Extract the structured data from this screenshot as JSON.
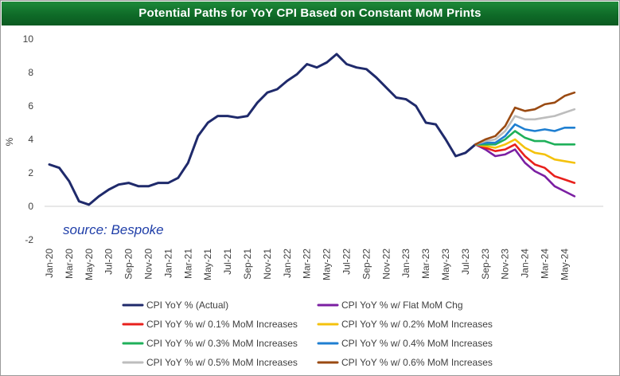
{
  "header": {
    "title": "Potential Paths for YoY CPI Based on Constant MoM Prints"
  },
  "source_label": "source: Bespoke",
  "chart_data": {
    "type": "line",
    "title": "Potential Paths for YoY CPI Based on Constant MoM Prints",
    "ylabel": "%",
    "xlabel": "",
    "ylim": [
      -2,
      10
    ],
    "y_ticks": [
      -2,
      0,
      2,
      4,
      6,
      8,
      10
    ],
    "grid": false,
    "legend_position": "bottom",
    "x_tick_labels": [
      "Jan-20",
      "Mar-20",
      "May-20",
      "Jul-20",
      "Sep-20",
      "Nov-20",
      "Jan-21",
      "Mar-21",
      "May-21",
      "Jul-21",
      "Sep-21",
      "Nov-21",
      "Jan-22",
      "Mar-22",
      "May-22",
      "Jul-22",
      "Sep-22",
      "Nov-22",
      "Jan-23",
      "Mar-23",
      "May-23",
      "Jul-23",
      "Sep-23",
      "Nov-23",
      "Jan-24",
      "Mar-24",
      "May-24"
    ],
    "months": [
      "Jan-20",
      "Feb-20",
      "Mar-20",
      "Apr-20",
      "May-20",
      "Jun-20",
      "Jul-20",
      "Aug-20",
      "Sep-20",
      "Oct-20",
      "Nov-20",
      "Dec-20",
      "Jan-21",
      "Feb-21",
      "Mar-21",
      "Apr-21",
      "May-21",
      "Jun-21",
      "Jul-21",
      "Aug-21",
      "Sep-21",
      "Oct-21",
      "Nov-21",
      "Dec-21",
      "Jan-22",
      "Feb-22",
      "Mar-22",
      "Apr-22",
      "May-22",
      "Jun-22",
      "Jul-22",
      "Aug-22",
      "Sep-22",
      "Oct-22",
      "Nov-22",
      "Dec-22",
      "Jan-23",
      "Feb-23",
      "Mar-23",
      "Apr-23",
      "May-23",
      "Jun-23",
      "Jul-23",
      "Aug-23",
      "Sep-23",
      "Oct-23",
      "Nov-23",
      "Dec-23",
      "Jan-24",
      "Feb-24",
      "Mar-24",
      "Apr-24",
      "May-24",
      "Jun-24"
    ],
    "series": [
      {
        "name": "CPI YoY % (Actual)",
        "color": "#1f2a6b",
        "start": "Jan-20",
        "values": [
          2.5,
          2.3,
          1.5,
          0.3,
          0.1,
          0.6,
          1.0,
          1.3,
          1.4,
          1.2,
          1.2,
          1.4,
          1.4,
          1.7,
          2.6,
          4.2,
          5.0,
          5.4,
          5.4,
          5.3,
          5.4,
          6.2,
          6.8,
          7.0,
          7.5,
          7.9,
          8.5,
          8.3,
          8.6,
          9.1,
          8.5,
          8.3,
          8.2,
          7.7,
          7.1,
          6.5,
          6.4,
          6.0,
          5.0,
          4.9,
          4.0,
          3.0,
          3.2,
          3.7
        ]
      },
      {
        "name": "CPI YoY % w/ Flat MoM Chg",
        "color": "#7b1fa2",
        "start": "Aug-23",
        "values": [
          3.7,
          3.4,
          3.0,
          3.1,
          3.4,
          2.6,
          2.1,
          1.8,
          1.2,
          0.9,
          0.6
        ]
      },
      {
        "name": "CPI YoY % w/ 0.1% MoM Increases",
        "color": "#e8201c",
        "start": "Aug-23",
        "values": [
          3.7,
          3.5,
          3.3,
          3.4,
          3.7,
          3.0,
          2.5,
          2.3,
          1.8,
          1.6,
          1.4
        ]
      },
      {
        "name": "CPI YoY % w/ 0.2% MoM Increases",
        "color": "#f4c20d",
        "start": "Aug-23",
        "values": [
          3.7,
          3.6,
          3.5,
          3.7,
          4.0,
          3.5,
          3.2,
          3.1,
          2.8,
          2.7,
          2.6
        ]
      },
      {
        "name": "CPI YoY % w/ 0.3% MoM Increases",
        "color": "#1fb05a",
        "start": "Aug-23",
        "values": [
          3.7,
          3.7,
          3.7,
          4.0,
          4.5,
          4.1,
          3.9,
          3.9,
          3.7,
          3.7,
          3.7
        ]
      },
      {
        "name": "CPI YoY % w/ 0.4% MoM Increases",
        "color": "#1f7fd1",
        "start": "Aug-23",
        "values": [
          3.7,
          3.8,
          3.8,
          4.2,
          4.9,
          4.6,
          4.5,
          4.6,
          4.5,
          4.7,
          4.7
        ]
      },
      {
        "name": "CPI YoY % w/ 0.5% MoM Increases",
        "color": "#bdbdbd",
        "start": "Aug-23",
        "values": [
          3.7,
          3.9,
          4.0,
          4.5,
          5.4,
          5.2,
          5.2,
          5.3,
          5.4,
          5.6,
          5.8
        ]
      },
      {
        "name": "CPI YoY % w/ 0.6% MoM Increases",
        "color": "#9a4a12",
        "start": "Aug-23",
        "values": [
          3.7,
          4.0,
          4.2,
          4.8,
          5.9,
          5.7,
          5.8,
          6.1,
          6.2,
          6.6,
          6.8
        ]
      }
    ]
  }
}
